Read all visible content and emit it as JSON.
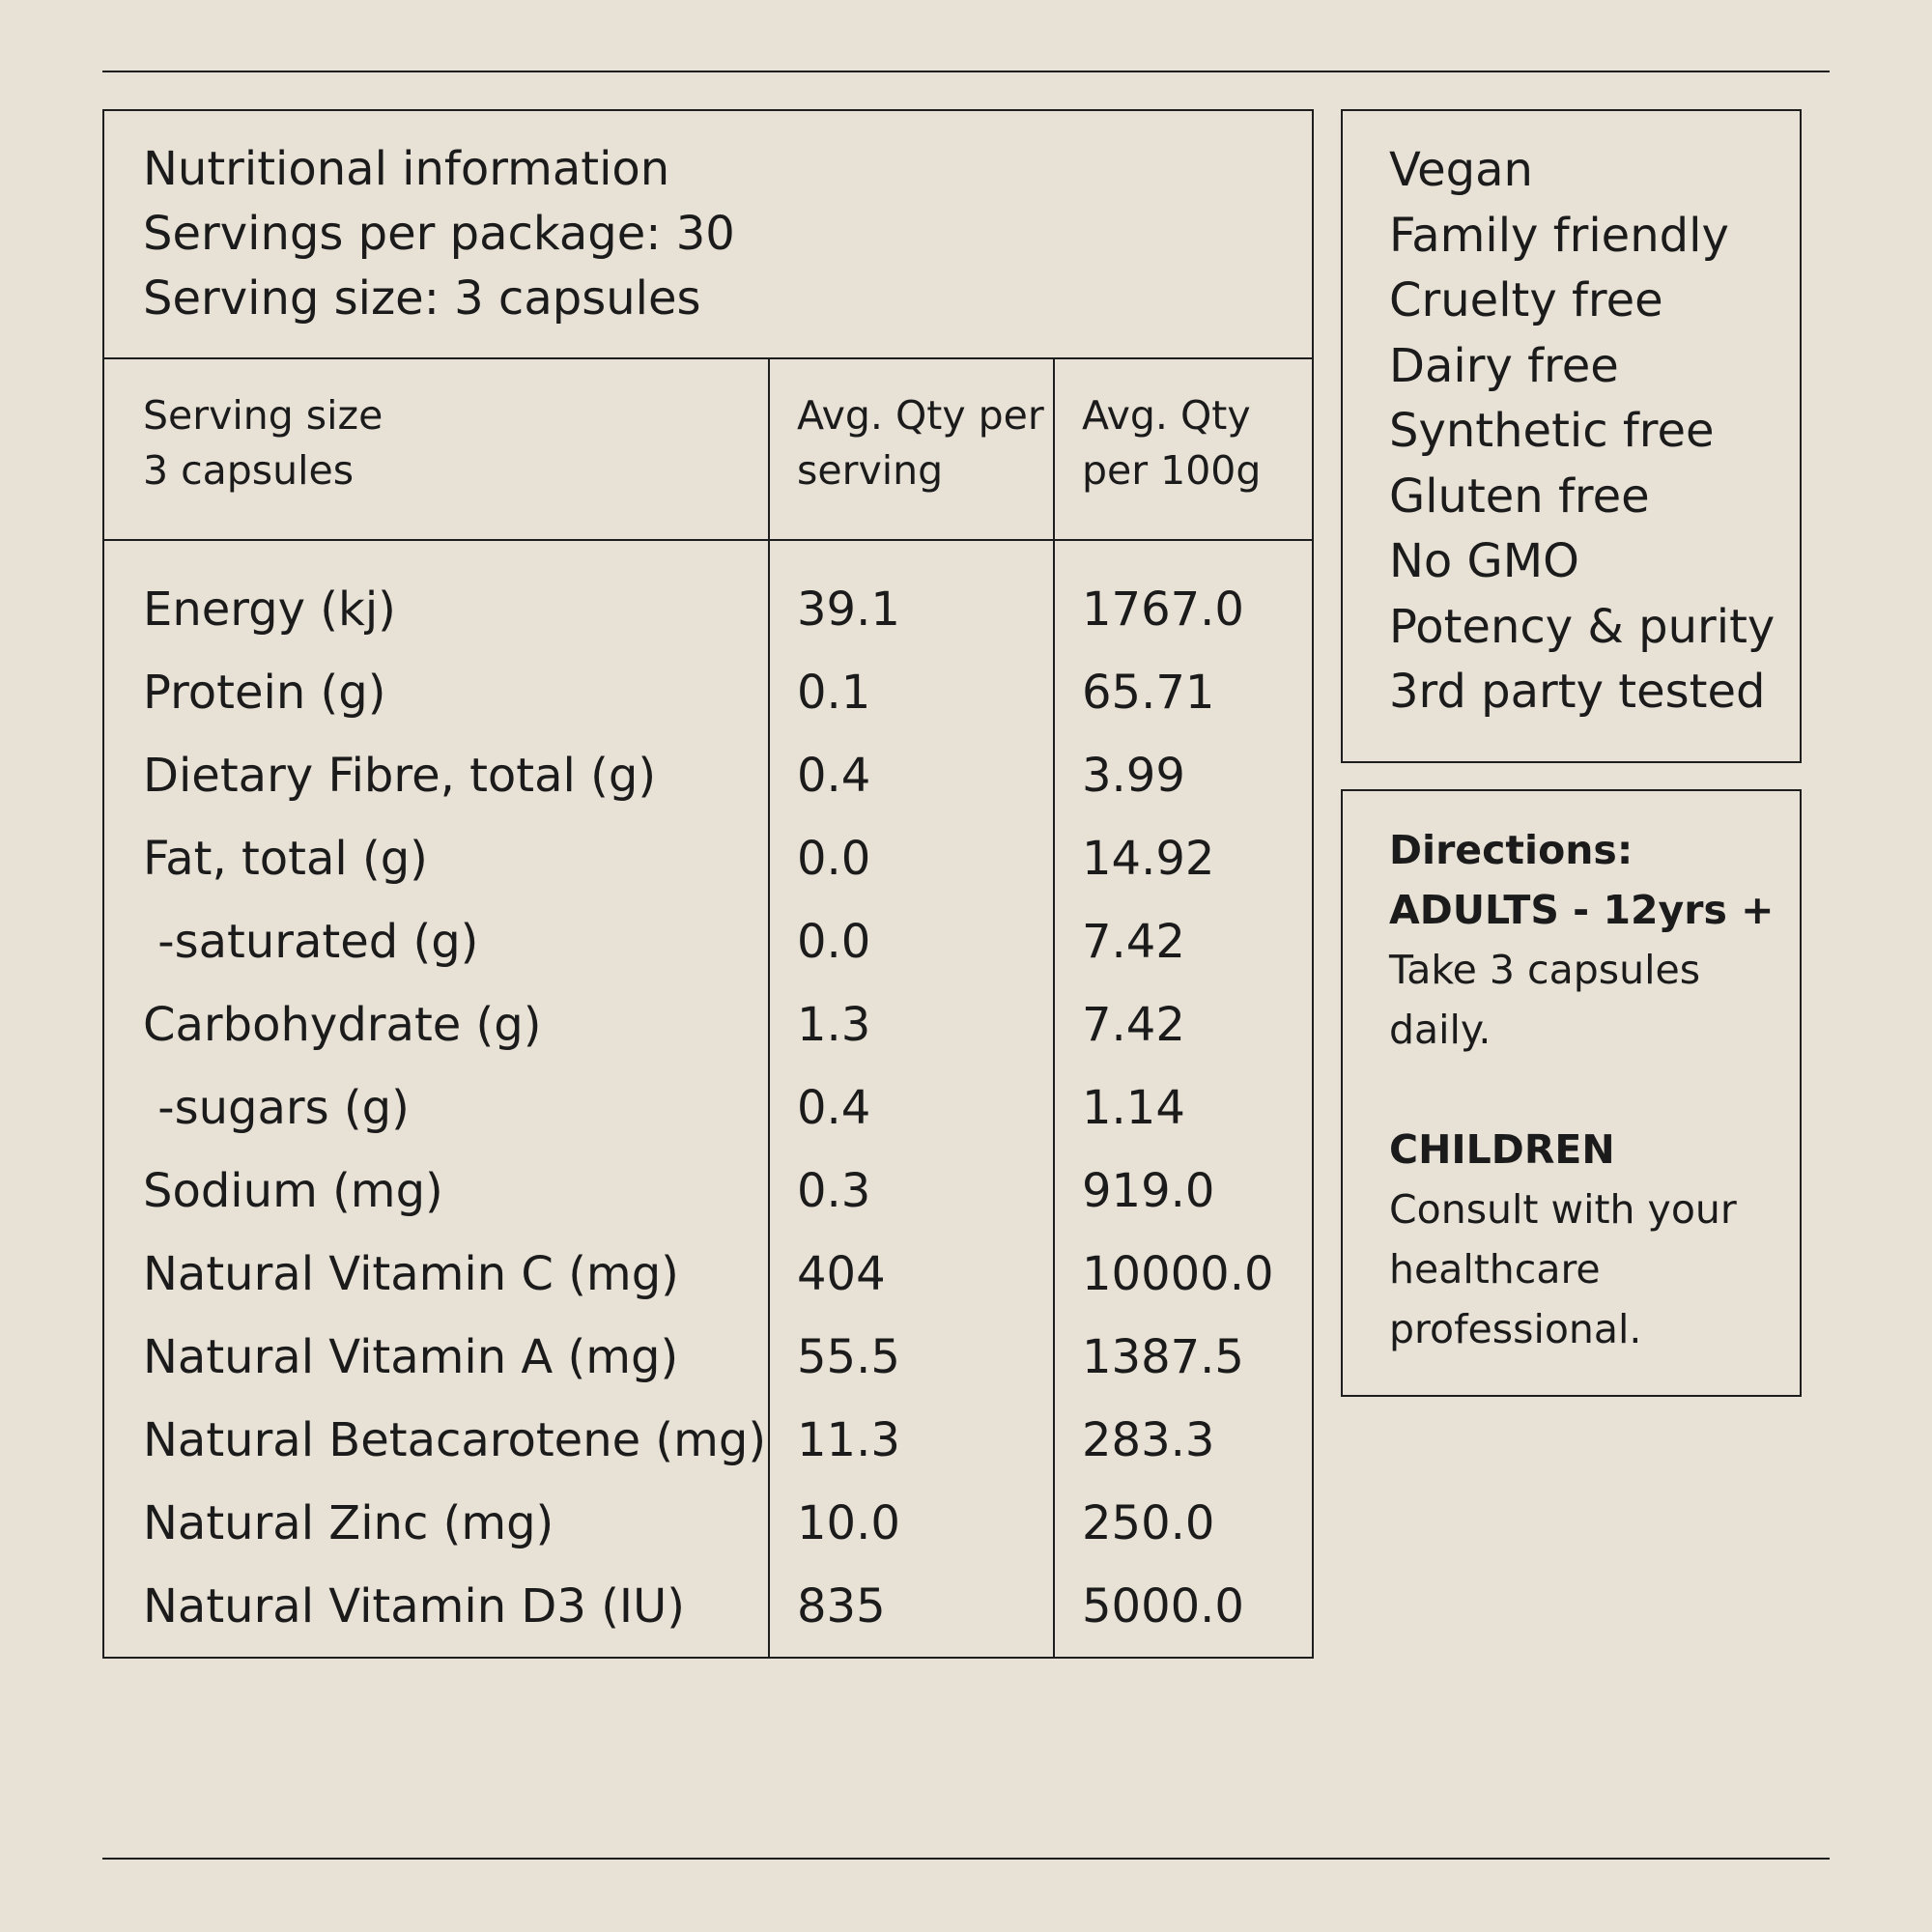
{
  "header": {
    "title": "Nutritional information",
    "servings_per_package": "Servings per package: 30",
    "serving_size": "Serving size: 3 capsules"
  },
  "columns": {
    "col1_line1": "Serving size",
    "col1_line2": "3 capsules",
    "col2_line1": "Avg. Qty per",
    "col2_line2": "serving",
    "col3_line1": "Avg. Qty",
    "col3_line2": "per 100g"
  },
  "rows": [
    {
      "name": "Energy (kj)",
      "per_serving": "39.1",
      "per_100g": "1767.0"
    },
    {
      "name": "Protein (g)",
      "per_serving": "0.1",
      "per_100g": "65.71"
    },
    {
      "name": "Dietary Fibre, total (g)",
      "per_serving": "0.4",
      "per_100g": "3.99"
    },
    {
      "name": "Fat, total (g)",
      "per_serving": "0.0",
      "per_100g": "14.92"
    },
    {
      "name": " -saturated (g)",
      "per_serving": "0.0",
      "per_100g": "7.42"
    },
    {
      "name": "Carbohydrate (g)",
      "per_serving": "1.3",
      "per_100g": "7.42"
    },
    {
      "name": " -sugars (g)",
      "per_serving": "0.4",
      "per_100g": "1.14"
    },
    {
      "name": "Sodium (mg)",
      "per_serving": "0.3",
      "per_100g": "919.0"
    },
    {
      "name": "Natural Vitamin C (mg)",
      "per_serving": "404",
      "per_100g": "10000.0"
    },
    {
      "name": "Natural Vitamin A (mg)",
      "per_serving": "55.5",
      "per_100g": "1387.5"
    },
    {
      "name": "Natural Betacarotene (mg)",
      "per_serving": "11.3",
      "per_100g": "283.3"
    },
    {
      "name": "Natural Zinc (mg)",
      "per_serving": "10.0",
      "per_100g": "250.0"
    },
    {
      "name": "Natural Vitamin D3 (IU)",
      "per_serving": "835",
      "per_100g": "5000.0"
    }
  ],
  "claims": [
    "Vegan",
    "Family friendly",
    "Cruelty free",
    "Dairy free",
    "Synthetic free",
    "Gluten free",
    "No GMO",
    "Potency & purity",
    "3rd party tested"
  ],
  "directions": {
    "heading": "Directions:",
    "adults_heading": "ADULTS - 12yrs +",
    "adults_line1": "Take 3 capsules",
    "adults_line2": "daily.",
    "children_heading": "CHILDREN",
    "children_line1": "Consult with your",
    "children_line2": "healthcare",
    "children_line3": "professional."
  }
}
